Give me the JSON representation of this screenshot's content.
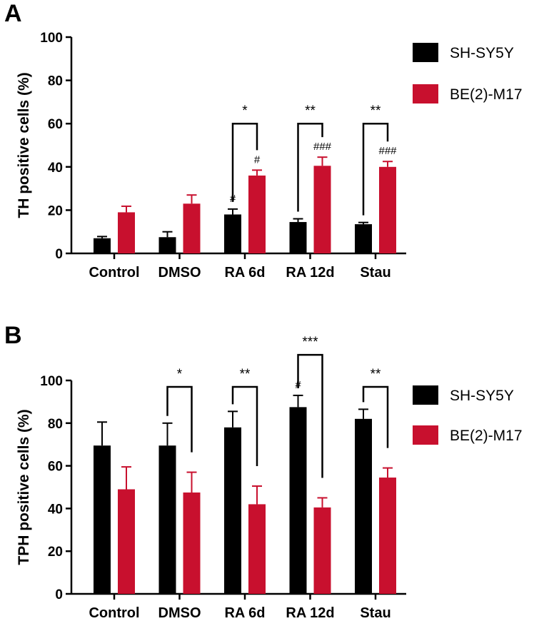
{
  "colors": {
    "series_1": "#000000",
    "series_2": "#c8102e"
  },
  "chart_data": [
    {
      "panel": "A",
      "type": "bar",
      "ylabel": "TH positive cells (%)",
      "xlabel": "",
      "ylim": [
        0,
        100
      ],
      "yticks": [
        0,
        20,
        40,
        60,
        80,
        100
      ],
      "categories": [
        "Control",
        "DMSO",
        "RA 6d",
        "RA 12d",
        "Stau"
      ],
      "legend_position": "top-right",
      "series": [
        {
          "name": "SH-SY5Y",
          "color": "#000000",
          "values": [
            7,
            7.5,
            18,
            14.5,
            13.5
          ],
          "errors": [
            0.8,
            2.5,
            2.5,
            1.5,
            0.8
          ]
        },
        {
          "name": "BE(2)-M17",
          "color": "#c8102e",
          "values": [
            19,
            23,
            36,
            40.5,
            40
          ],
          "errors": [
            2.8,
            4,
            2.5,
            4,
            2.5
          ]
        }
      ],
      "annotations": [
        {
          "type": "hash",
          "category": 2,
          "series": 0,
          "text": "#"
        },
        {
          "type": "hash",
          "category": 2,
          "series": 1,
          "text": "#"
        },
        {
          "type": "hash",
          "category": 3,
          "series": 1,
          "text": "###"
        },
        {
          "type": "hash",
          "category": 4,
          "series": 1,
          "text": "###"
        },
        {
          "type": "bracket",
          "category": 2,
          "level": 60,
          "text": "*"
        },
        {
          "type": "bracket",
          "category": 3,
          "level": 60,
          "text": "**"
        },
        {
          "type": "bracket",
          "category": 4,
          "level": 60,
          "text": "**"
        }
      ]
    },
    {
      "panel": "B",
      "type": "bar",
      "ylabel": "TPH positive cells (%)",
      "xlabel": "",
      "ylim": [
        0,
        100
      ],
      "yticks": [
        0,
        20,
        40,
        60,
        80,
        100
      ],
      "categories": [
        "Control",
        "DMSO",
        "RA 6d",
        "RA 12d",
        "Stau"
      ],
      "legend_position": "top-right",
      "series": [
        {
          "name": "SH-SY5Y",
          "color": "#000000",
          "values": [
            69.5,
            69.5,
            78,
            87.5,
            82
          ],
          "errors": [
            11,
            10.5,
            7.5,
            5.5,
            4.5
          ]
        },
        {
          "name": "BE(2)-M17",
          "color": "#c8102e",
          "values": [
            49,
            47.5,
            42,
            40.5,
            54.5
          ],
          "errors": [
            10.5,
            9.5,
            8.5,
            4.5,
            4.5
          ]
        }
      ],
      "annotations": [
        {
          "type": "hash",
          "category": 3,
          "series": 0,
          "text": "#"
        },
        {
          "type": "bracket",
          "category": 1,
          "level": 97,
          "text": "*"
        },
        {
          "type": "bracket",
          "category": 2,
          "level": 97,
          "text": "**"
        },
        {
          "type": "bracket",
          "category": 3,
          "level": 112,
          "text": "***"
        },
        {
          "type": "bracket",
          "category": 4,
          "level": 97,
          "text": "**"
        }
      ]
    }
  ]
}
